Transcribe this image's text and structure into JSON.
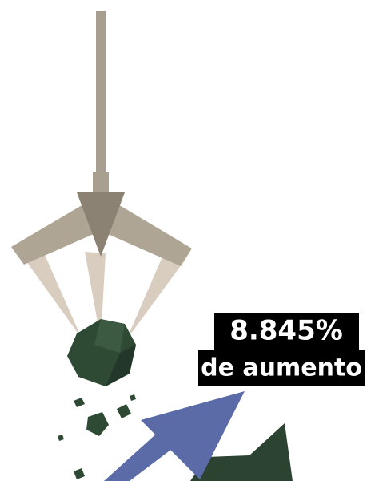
{
  "label": {
    "line1": "8.845%",
    "line2": "de aumento"
  }
}
